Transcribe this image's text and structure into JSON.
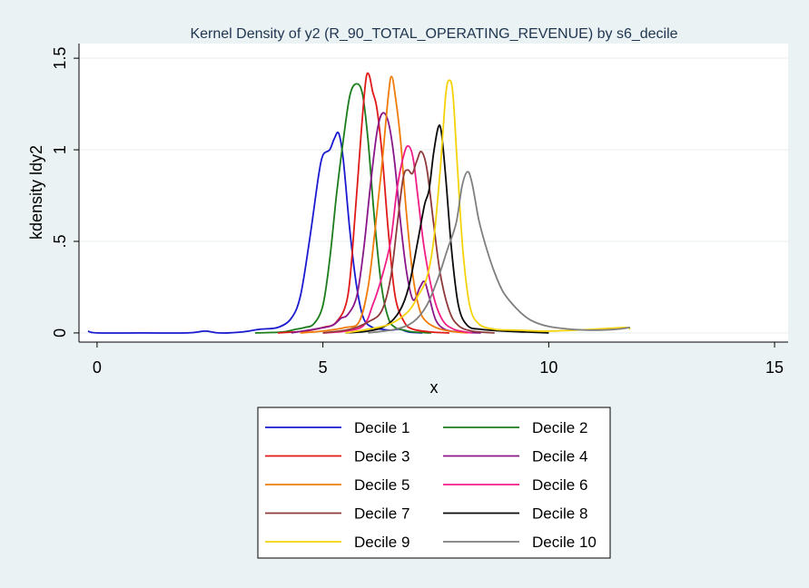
{
  "chart_data": {
    "type": "line",
    "title": "Kernel Density of y2 (R_90_TOTAL_OPERATING_REVENUE) by s6_decile",
    "xlabel": "x",
    "ylabel": "kdensity ldy2",
    "xlim": [
      -0.4,
      15.3
    ],
    "ylim": [
      -0.05,
      1.58
    ],
    "x_ticks": [
      0,
      5,
      10,
      15
    ],
    "x_tick_labels": [
      "0",
      "5",
      "10",
      "15"
    ],
    "y_ticks": [
      0,
      0.5,
      1,
      1.5
    ],
    "y_tick_labels": [
      "0",
      ".5",
      "1",
      "1.5"
    ],
    "grid": "horizontal",
    "legend_position": "bottom",
    "series": [
      {
        "name": "Decile 1",
        "color": "#1a1ad0",
        "points": [
          [
            -0.2,
            0.01
          ],
          [
            0,
            0
          ],
          [
            1,
            0
          ],
          [
            2,
            0
          ],
          [
            2.4,
            0.01
          ],
          [
            2.7,
            0
          ],
          [
            3.2,
            0.005
          ],
          [
            3.6,
            0.02
          ],
          [
            4.0,
            0.03
          ],
          [
            4.3,
            0.08
          ],
          [
            4.5,
            0.2
          ],
          [
            4.7,
            0.5
          ],
          [
            4.9,
            0.85
          ],
          [
            5.0,
            0.97
          ],
          [
            5.15,
            1.0
          ],
          [
            5.25,
            1.06
          ],
          [
            5.35,
            1.09
          ],
          [
            5.45,
            0.95
          ],
          [
            5.6,
            0.55
          ],
          [
            5.75,
            0.25
          ],
          [
            5.9,
            0.08
          ],
          [
            6.1,
            0.03
          ],
          [
            6.3,
            0.02
          ],
          [
            6.5,
            0.015
          ],
          [
            6.7,
            0.02
          ],
          [
            6.9,
            0.005
          ],
          [
            7.2,
            0
          ]
        ]
      },
      {
        "name": "Decile 2",
        "color": "#1b7d1b",
        "points": [
          [
            3.5,
            0
          ],
          [
            4.1,
            0.005
          ],
          [
            4.4,
            0.02
          ],
          [
            4.6,
            0.03
          ],
          [
            4.8,
            0.05
          ],
          [
            5.0,
            0.15
          ],
          [
            5.15,
            0.4
          ],
          [
            5.3,
            0.75
          ],
          [
            5.45,
            1.05
          ],
          [
            5.6,
            1.3
          ],
          [
            5.75,
            1.36
          ],
          [
            5.88,
            1.3
          ],
          [
            6.0,
            1.05
          ],
          [
            6.15,
            0.6
          ],
          [
            6.3,
            0.25
          ],
          [
            6.45,
            0.08
          ],
          [
            6.6,
            0.03
          ],
          [
            6.8,
            0.015
          ],
          [
            7.0,
            0.005
          ],
          [
            7.4,
            0
          ]
        ]
      },
      {
        "name": "Decile 3",
        "color": "#e01919",
        "points": [
          [
            4.0,
            0
          ],
          [
            4.6,
            0.01
          ],
          [
            5.0,
            0.03
          ],
          [
            5.3,
            0.06
          ],
          [
            5.55,
            0.2
          ],
          [
            5.7,
            0.6
          ],
          [
            5.85,
            1.1
          ],
          [
            5.95,
            1.38
          ],
          [
            6.02,
            1.41
          ],
          [
            6.1,
            1.32
          ],
          [
            6.2,
            1.22
          ],
          [
            6.32,
            0.95
          ],
          [
            6.45,
            0.55
          ],
          [
            6.6,
            0.2
          ],
          [
            6.8,
            0.06
          ],
          [
            7.0,
            0.02
          ],
          [
            7.4,
            0.005
          ],
          [
            7.8,
            0
          ]
        ]
      },
      {
        "name": "Decile 4",
        "color": "#8a178a",
        "points": [
          [
            4.3,
            0
          ],
          [
            4.8,
            0.02
          ],
          [
            5.2,
            0.04
          ],
          [
            5.4,
            0.08
          ],
          [
            5.55,
            0.1
          ],
          [
            5.75,
            0.2
          ],
          [
            5.9,
            0.45
          ],
          [
            6.05,
            0.8
          ],
          [
            6.2,
            1.1
          ],
          [
            6.32,
            1.2
          ],
          [
            6.45,
            1.15
          ],
          [
            6.58,
            0.95
          ],
          [
            6.72,
            0.6
          ],
          [
            6.86,
            0.32
          ],
          [
            7.0,
            0.18
          ],
          [
            7.15,
            0.25
          ],
          [
            7.25,
            0.28
          ],
          [
            7.35,
            0.2
          ],
          [
            7.5,
            0.07
          ],
          [
            7.7,
            0.02
          ],
          [
            8.0,
            0.005
          ],
          [
            8.5,
            0
          ]
        ]
      },
      {
        "name": "Decile 5",
        "color": "#f07b0a",
        "points": [
          [
            4.5,
            0
          ],
          [
            5.0,
            0.01
          ],
          [
            5.5,
            0.03
          ],
          [
            5.8,
            0.06
          ],
          [
            6.0,
            0.25
          ],
          [
            6.15,
            0.55
          ],
          [
            6.3,
            0.9
          ],
          [
            6.45,
            1.3
          ],
          [
            6.52,
            1.4
          ],
          [
            6.6,
            1.3
          ],
          [
            6.72,
            1.05
          ],
          [
            6.85,
            0.65
          ],
          [
            7.0,
            0.3
          ],
          [
            7.15,
            0.12
          ],
          [
            7.3,
            0.06
          ],
          [
            7.5,
            0.03
          ],
          [
            7.8,
            0.01
          ],
          [
            8.2,
            0
          ]
        ]
      },
      {
        "name": "Decile 6",
        "color": "#f01d86",
        "points": [
          [
            5.0,
            0
          ],
          [
            5.5,
            0.01
          ],
          [
            5.9,
            0.04
          ],
          [
            6.1,
            0.15
          ],
          [
            6.3,
            0.3
          ],
          [
            6.5,
            0.5
          ],
          [
            6.65,
            0.8
          ],
          [
            6.8,
            0.98
          ],
          [
            6.9,
            1.02
          ],
          [
            7.0,
            0.95
          ],
          [
            7.1,
            0.75
          ],
          [
            7.25,
            0.45
          ],
          [
            7.45,
            0.2
          ],
          [
            7.65,
            0.07
          ],
          [
            7.9,
            0.02
          ],
          [
            8.3,
            0
          ]
        ]
      },
      {
        "name": "Decile 7",
        "color": "#8e3a3a",
        "points": [
          [
            5.0,
            0
          ],
          [
            5.6,
            0.02
          ],
          [
            6.0,
            0.06
          ],
          [
            6.3,
            0.12
          ],
          [
            6.5,
            0.3
          ],
          [
            6.65,
            0.6
          ],
          [
            6.78,
            0.85
          ],
          [
            6.88,
            0.89
          ],
          [
            6.98,
            0.87
          ],
          [
            7.08,
            0.94
          ],
          [
            7.18,
            0.99
          ],
          [
            7.3,
            0.9
          ],
          [
            7.45,
            0.6
          ],
          [
            7.6,
            0.32
          ],
          [
            7.8,
            0.12
          ],
          [
            8.0,
            0.04
          ],
          [
            8.3,
            0.01
          ],
          [
            8.8,
            0
          ]
        ]
      },
      {
        "name": "Decile 8",
        "color": "#0a0a0a",
        "points": [
          [
            5.5,
            0
          ],
          [
            6.0,
            0.01
          ],
          [
            6.4,
            0.04
          ],
          [
            6.7,
            0.12
          ],
          [
            6.9,
            0.25
          ],
          [
            7.1,
            0.5
          ],
          [
            7.25,
            0.7
          ],
          [
            7.35,
            0.78
          ],
          [
            7.45,
            0.98
          ],
          [
            7.55,
            1.12
          ],
          [
            7.62,
            1.1
          ],
          [
            7.72,
            0.85
          ],
          [
            7.85,
            0.45
          ],
          [
            8.0,
            0.15
          ],
          [
            8.2,
            0.04
          ],
          [
            8.5,
            0.02
          ],
          [
            9.0,
            0.01
          ],
          [
            9.5,
            0.005
          ],
          [
            10.0,
            0
          ]
        ]
      },
      {
        "name": "Decile 9",
        "color": "#f5d30a",
        "points": [
          [
            5.5,
            0
          ],
          [
            6.0,
            0.02
          ],
          [
            6.5,
            0.05
          ],
          [
            6.9,
            0.12
          ],
          [
            7.1,
            0.2
          ],
          [
            7.3,
            0.3
          ],
          [
            7.45,
            0.5
          ],
          [
            7.6,
            0.9
          ],
          [
            7.72,
            1.3
          ],
          [
            7.8,
            1.38
          ],
          [
            7.88,
            1.3
          ],
          [
            7.98,
            0.9
          ],
          [
            8.1,
            0.45
          ],
          [
            8.25,
            0.15
          ],
          [
            8.45,
            0.05
          ],
          [
            8.8,
            0.02
          ],
          [
            9.3,
            0.015
          ],
          [
            10.0,
            0.01
          ],
          [
            11.0,
            0.02
          ],
          [
            11.7,
            0.03
          ],
          [
            11.8,
            0.02
          ]
        ]
      },
      {
        "name": "Decile 10",
        "color": "#7f7f7f",
        "points": [
          [
            6.0,
            0
          ],
          [
            6.6,
            0.02
          ],
          [
            7.0,
            0.06
          ],
          [
            7.3,
            0.15
          ],
          [
            7.55,
            0.3
          ],
          [
            7.75,
            0.45
          ],
          [
            7.95,
            0.6
          ],
          [
            8.08,
            0.8
          ],
          [
            8.2,
            0.88
          ],
          [
            8.3,
            0.82
          ],
          [
            8.45,
            0.62
          ],
          [
            8.6,
            0.48
          ],
          [
            8.8,
            0.33
          ],
          [
            9.0,
            0.22
          ],
          [
            9.3,
            0.13
          ],
          [
            9.6,
            0.07
          ],
          [
            10.0,
            0.035
          ],
          [
            10.5,
            0.02
          ],
          [
            11.0,
            0.015
          ],
          [
            11.5,
            0.02
          ],
          [
            11.8,
            0.03
          ]
        ]
      }
    ]
  }
}
